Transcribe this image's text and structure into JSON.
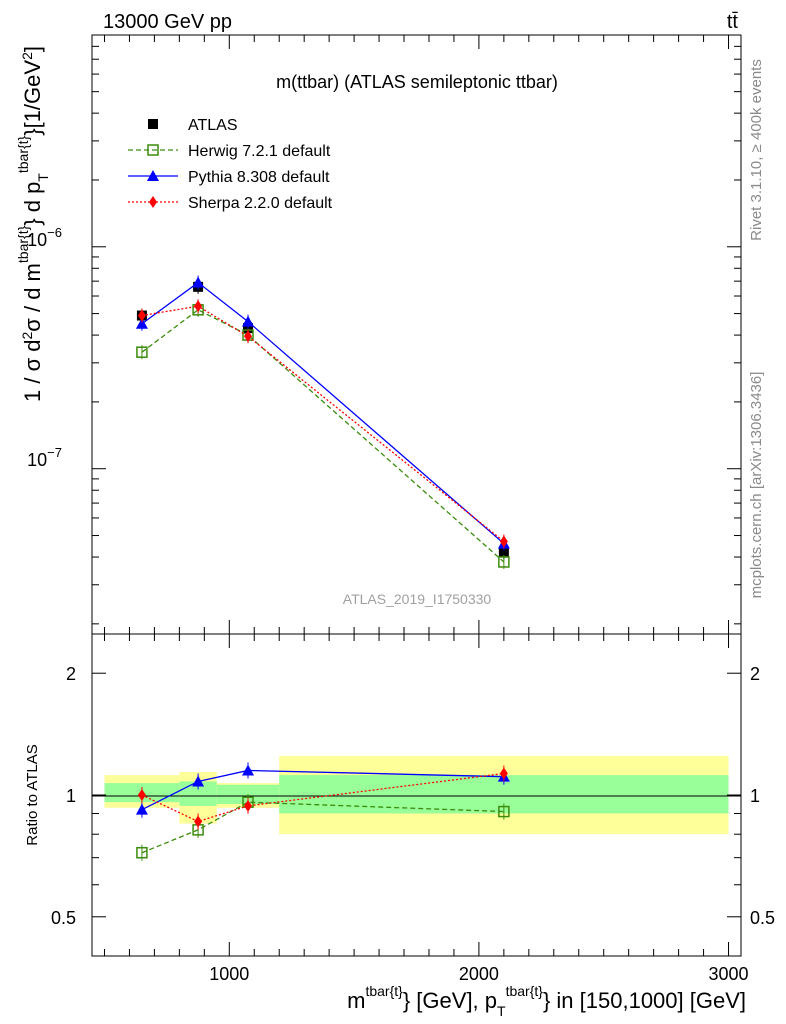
{
  "header": {
    "left": "13000 GeV pp",
    "right": "tt̄"
  },
  "side_labels": {
    "rivet": "Rivet 3.1.10, ≥ 400k events",
    "mcplots": "mcplots.cern.ch [arXiv:1306.3436]"
  },
  "chart_data": [
    {
      "type": "line",
      "title": "m(ttbar) (ATLAS semileptonic ttbar)",
      "watermark": "ATLAS_2019_I1750330",
      "ylabel": "1 / σ d²σ / d m^{tbar{t}} d p_T^{tbar{t}} [1/GeV²]",
      "yscale": "log",
      "ylim": [
        1.8e-08,
        9e-06
      ],
      "xlim": [
        450,
        3050
      ],
      "yticks": [
        {
          "value": 1e-07,
          "label": "10^-7"
        },
        {
          "value": 1e-06,
          "label": "10^-6"
        }
      ],
      "legend": {
        "placement": "top-left",
        "entries": [
          "ATLAS",
          "Herwig 7.2.1 default",
          "Pythia 8.308 default",
          "Sherpa 2.2.0 default"
        ]
      },
      "series": [
        {
          "name": "ATLAS",
          "color": "#000000",
          "marker": "square",
          "x": [
            650,
            875,
            1075,
            2100
          ],
          "values": [
            4.9e-07,
            6.6e-07,
            4.3e-07,
            4.2e-08
          ]
        },
        {
          "name": "Herwig 7.2.1 default",
          "color": "#3a8c0c",
          "marker": "open-square",
          "line": "dashed",
          "x": [
            650,
            875,
            1075,
            2100
          ],
          "values": [
            3.35e-07,
            5.2e-07,
            4e-07,
            3.8e-08
          ]
        },
        {
          "name": "Pythia 8.308 default",
          "color": "#0000ff",
          "marker": "triangle",
          "line": "solid",
          "x": [
            650,
            875,
            1075,
            2100
          ],
          "values": [
            4.5e-07,
            6.9e-07,
            4.6e-07,
            4.6e-08
          ]
        },
        {
          "name": "Sherpa 2.2.0 default",
          "color": "#ff0000",
          "marker": "diamond",
          "line": "dotted",
          "x": [
            650,
            875,
            1075,
            2100
          ],
          "values": [
            4.9e-07,
            5.4e-07,
            3.95e-07,
            4.7e-08
          ]
        }
      ]
    },
    {
      "type": "line",
      "ylabel": "Ratio to ATLAS",
      "xlabel": "m^{tbar{t}} [GeV], p_T^{tbar{t}} in [150,1000] [GeV]",
      "ylim": [
        0.4,
        2.5
      ],
      "xlim": [
        450,
        3050
      ],
      "xticks": [
        1000,
        2000,
        3000
      ],
      "yticks": [
        0.5,
        1,
        2
      ],
      "reference": 1,
      "uncertainty_bands": [
        {
          "x": [
            500,
            800
          ],
          "inner": [
            0.96,
            1.07
          ],
          "outer": [
            0.93,
            1.12
          ]
        },
        {
          "x": [
            800,
            950
          ],
          "inner": [
            0.94,
            1.08
          ],
          "outer": [
            0.85,
            1.14
          ]
        },
        {
          "x": [
            950,
            1200
          ],
          "inner": [
            0.95,
            1.06
          ],
          "outer": [
            0.93,
            1.07
          ]
        },
        {
          "x": [
            1200,
            3000
          ],
          "inner": [
            0.9,
            1.12
          ],
          "outer": [
            0.8,
            1.25
          ]
        }
      ],
      "series": [
        {
          "name": "Herwig 7.2.1 default",
          "x": [
            650,
            875,
            1075,
            2100
          ],
          "values": [
            0.72,
            0.82,
            0.96,
            0.91
          ]
        },
        {
          "name": "Pythia 8.308 default",
          "x": [
            650,
            875,
            1075,
            2100
          ],
          "values": [
            0.92,
            1.08,
            1.15,
            1.11
          ]
        },
        {
          "name": "Sherpa 2.2.0 default",
          "x": [
            650,
            875,
            1075,
            2100
          ],
          "values": [
            1.0,
            0.86,
            0.94,
            1.13
          ]
        }
      ]
    }
  ]
}
